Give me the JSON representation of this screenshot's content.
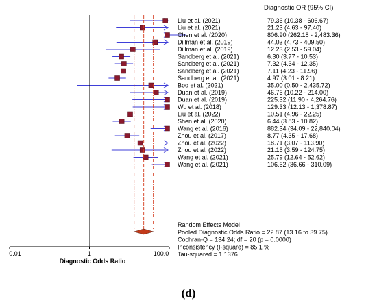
{
  "chart_data": {
    "type": "forest",
    "header": "Diagnostic OR (95% CI)",
    "xlabel": "Diagnostic Odds Ratio",
    "xscale": "log",
    "xlim": [
      0.01,
      100.0
    ],
    "xticks": [
      "0.01",
      "1",
      "100.0"
    ],
    "studies": [
      {
        "label": "Liu et al. (2021)",
        "or": 79.36,
        "lo": 10.38,
        "hi": 606.67,
        "ci": "79.36  (10.38 - 606.67)"
      },
      {
        "label": "Liu et al. (2021)",
        "or": 21.23,
        "lo": 4.63,
        "hi": 97.4,
        "ci": "21.23  (4.63 - 97.40)"
      },
      {
        "label": "Chen et al. (2020)",
        "or": 806.9,
        "lo": 262.18,
        "hi": 2483.36,
        "ci": "806.90  (262.18 - 2,483.36)"
      },
      {
        "label": "Dillman et al. (2019)",
        "or": 44.03,
        "lo": 4.73,
        "hi": 409.5,
        "ci": "44.03  (4.73 - 409.50)"
      },
      {
        "label": "Dillman et al. (2019)",
        "or": 12.23,
        "lo": 2.53,
        "hi": 59.04,
        "ci": "12.23  (2.53 - 59.04)"
      },
      {
        "label": "Sandberg et al. (2021)",
        "or": 6.3,
        "lo": 3.77,
        "hi": 10.53,
        "ci": "6.30  (3.77 - 10.53)"
      },
      {
        "label": "Sandberg et al. (2021)",
        "or": 7.32,
        "lo": 4.34,
        "hi": 12.35,
        "ci": "7.32  (4.34 - 12.35)"
      },
      {
        "label": "Sandberg et al. (2021)",
        "or": 7.11,
        "lo": 4.23,
        "hi": 11.96,
        "ci": "7.11  (4.23 - 11.96)"
      },
      {
        "label": "Sandberg et al. (2021)",
        "or": 4.97,
        "lo": 3.01,
        "hi": 8.21,
        "ci": "4.97  (3.01 - 8.21)"
      },
      {
        "label": "Boo et al. (2021)",
        "or": 35.0,
        "lo": 0.5,
        "hi": 2435.72,
        "ci": "35.00  (0.50 - 2,435.72)"
      },
      {
        "label": "Duan et al. (2019)",
        "or": 46.76,
        "lo": 10.22,
        "hi": 214.0,
        "ci": "46.76  (10.22 - 214.00)"
      },
      {
        "label": "Duan et al. (2019)",
        "or": 225.32,
        "lo": 11.9,
        "hi": 4264.76,
        "ci": "225.32  (11.90 - 4,264.76)"
      },
      {
        "label": "Wu et al. (2018)",
        "or": 129.33,
        "lo": 12.13,
        "hi": 1378.87,
        "ci": "129.33  (12.13 - 1,378.87)"
      },
      {
        "label": "Liu et al. (2022)",
        "or": 10.51,
        "lo": 4.96,
        "hi": 22.25,
        "ci": "10.51  (4.96 - 22.25)"
      },
      {
        "label": "Shen et al. (2020)",
        "or": 6.44,
        "lo": 3.83,
        "hi": 10.82,
        "ci": "6.44  (3.83 - 10.82)"
      },
      {
        "label": "Wang et al. (2016)",
        "or": 882.34,
        "lo": 34.09,
        "hi": 22840.04,
        "ci": "882.34  (34.09 - 22,840.04)"
      },
      {
        "label": "Zhou et al. (2017)",
        "or": 8.77,
        "lo": 4.35,
        "hi": 17.68,
        "ci": "8.77  (4.35 - 17.68)"
      },
      {
        "label": "Zhou et al. (2022)",
        "or": 18.71,
        "lo": 3.07,
        "hi": 113.9,
        "ci": "18.71  (3.07 - 113.90)"
      },
      {
        "label": "Zhou et al. (2022)",
        "or": 21.15,
        "lo": 3.59,
        "hi": 124.75,
        "ci": "21.15  (3.59 - 124.75)"
      },
      {
        "label": "Wang et al. (2021)",
        "or": 25.79,
        "lo": 12.64,
        "hi": 52.62,
        "ci": "25.79  (12.64 - 52.62)"
      },
      {
        "label": "Wang et al. (2021)",
        "or": 106.62,
        "lo": 36.66,
        "hi": 310.09,
        "ci": "106.62  (36.66 - 310.09)"
      }
    ],
    "pooled": {
      "or": 22.87,
      "lo": 13.16,
      "hi": 39.75
    },
    "summary_lines": [
      "Random Effects Model",
      "Pooled Diagnostic Odds Ratio = 22.87 (13.16 to 39.75)",
      "Cochran-Q = 134.24; df = 20 (p = 0.0000)",
      "Inconsistency (I-square) = 85.1 %",
      "Tau-squared = 1.1376"
    ],
    "panel_label": "(d)",
    "colors": {
      "ci_line": "#3f3fd8",
      "marker_fill": "#8b1a2e",
      "pooled_line": "#d43c1e",
      "pooled_marker": "#c23a1a",
      "axis": "#000000"
    }
  }
}
